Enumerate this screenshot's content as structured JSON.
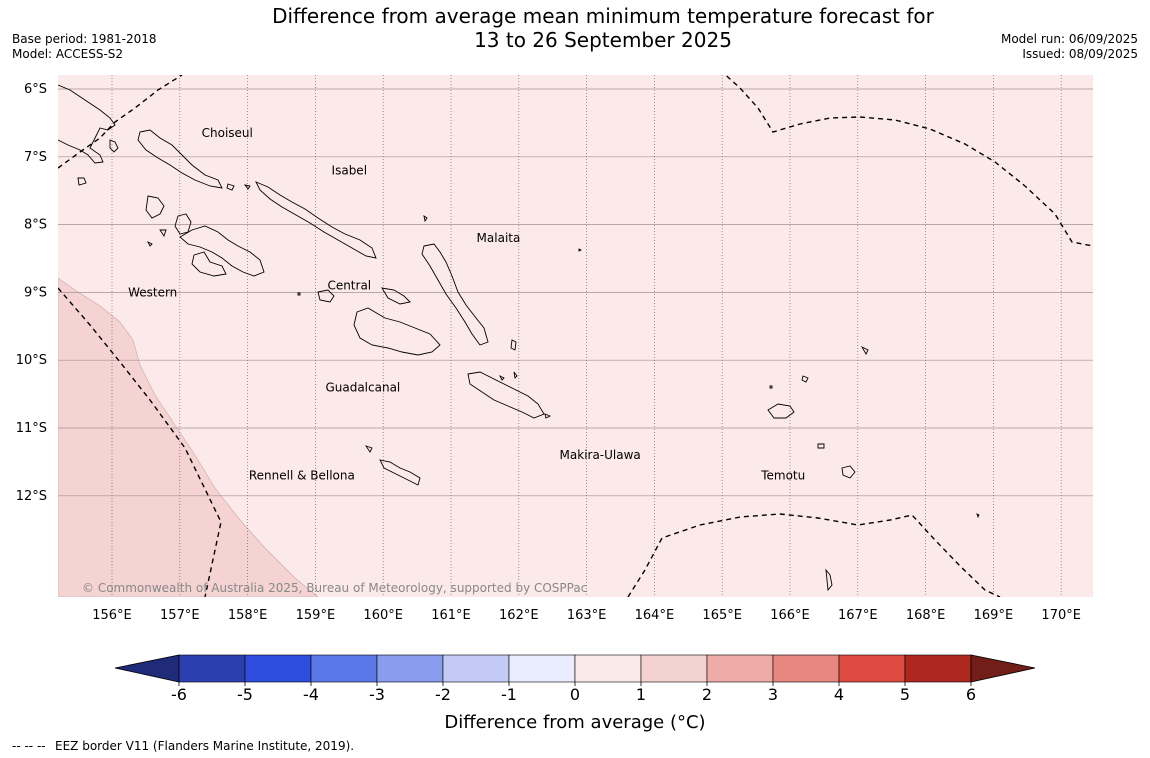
{
  "title": {
    "line1": "Difference from average mean minimum temperature forecast for",
    "line2": "13 to 26 September 2025"
  },
  "meta_left": {
    "base_period": "Base period: 1981-2018",
    "model": "Model: ACCESS-S2"
  },
  "meta_right": {
    "model_run": "Model run: 06/09/2025",
    "issued": "Issued: 08/09/2025"
  },
  "map": {
    "lat_labels": [
      "6°S",
      "7°S",
      "8°S",
      "9°S",
      "10°S",
      "11°S",
      "12°S"
    ],
    "lon_labels": [
      "156°E",
      "157°E",
      "158°E",
      "159°E",
      "160°E",
      "161°E",
      "162°E",
      "163°E",
      "164°E",
      "165°E",
      "166°E",
      "167°E",
      "168°E",
      "169°E",
      "170°E"
    ],
    "region_labels": [
      {
        "name": "Choiseul",
        "lon": 157.7,
        "lat": -6.65
      },
      {
        "name": "Isabel",
        "lon": 159.5,
        "lat": -7.2
      },
      {
        "name": "Malaita",
        "lon": 161.7,
        "lat": -8.2
      },
      {
        "name": "Western",
        "lon": 156.6,
        "lat": -9.0
      },
      {
        "name": "Central",
        "lon": 159.5,
        "lat": -8.9
      },
      {
        "name": "Guadalcanal",
        "lon": 159.7,
        "lat": -10.4
      },
      {
        "name": "Makira-Ulawa",
        "lon": 163.2,
        "lat": -11.4
      },
      {
        "name": "Rennell & Bellona",
        "lon": 158.8,
        "lat": -11.7
      },
      {
        "name": "Temotu",
        "lon": 165.9,
        "lat": -11.7
      }
    ],
    "copyright": "© Commonwealth of Australia 2025, Bureau of Meteorology, supported by COSPPac",
    "background_color": "#fbeae9",
    "anomaly_1_2_color": "#f4d3d2"
  },
  "colorbar": {
    "ticks": [
      "-6",
      "-5",
      "-4",
      "-3",
      "-2",
      "-1",
      "0",
      "1",
      "2",
      "3",
      "4",
      "5",
      "6"
    ],
    "colors": [
      "#2c3fae",
      "#2f4ee0",
      "#5a77e8",
      "#8a9cee",
      "#c2caf5",
      "#e8ecfc",
      "#fbeaea",
      "#f4d2d1",
      "#eeaba8",
      "#e78880",
      "#dc4a40",
      "#ae2720"
    ],
    "under_color": "#1f2a78",
    "over_color": "#731d18",
    "label": "Difference from average (°C)"
  },
  "footer": {
    "legend_symbol": "--  --  --",
    "legend_text": "EEZ border V11 (Flanders Marine Institute, 2019)."
  }
}
